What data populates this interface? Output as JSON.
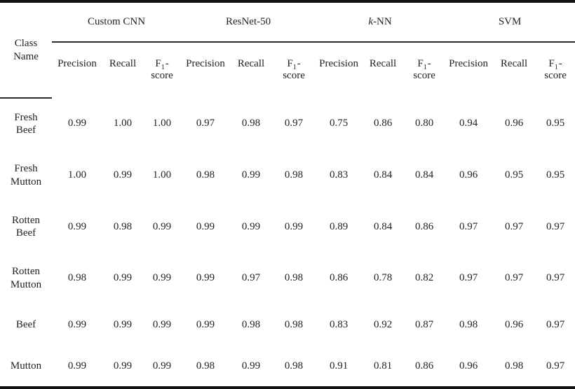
{
  "table": {
    "class_header": {
      "lines": [
        "Class",
        "Name"
      ]
    },
    "groups": [
      {
        "label": "Custom CNN"
      },
      {
        "label": "ResNet-50"
      },
      {
        "label_italic": "k",
        "label_rest": "-NN"
      },
      {
        "label": "SVM"
      }
    ],
    "metric_headers": {
      "precision": "Precision",
      "recall": "Recall",
      "f1": {
        "symbol": "F",
        "subscript": "1",
        "hyphen": "-",
        "line2": "score"
      }
    },
    "rows": [
      {
        "name_lines": [
          "Fresh",
          "Beef"
        ],
        "values": [
          "0.99",
          "1.00",
          "1.00",
          "0.97",
          "0.98",
          "0.97",
          "0.75",
          "0.86",
          "0.80",
          "0.94",
          "0.96",
          "0.95"
        ]
      },
      {
        "name_lines": [
          "Fresh",
          "Mutton"
        ],
        "values": [
          "1.00",
          "0.99",
          "1.00",
          "0.98",
          "0.99",
          "0.98",
          "0.83",
          "0.84",
          "0.84",
          "0.96",
          "0.95",
          "0.95"
        ]
      },
      {
        "name_lines": [
          "Rotten",
          "Beef"
        ],
        "values": [
          "0.99",
          "0.98",
          "0.99",
          "0.99",
          "0.99",
          "0.99",
          "0.89",
          "0.84",
          "0.86",
          "0.97",
          "0.97",
          "0.97"
        ]
      },
      {
        "name_lines": [
          "Rotten",
          "Mutton"
        ],
        "values": [
          "0.98",
          "0.99",
          "0.99",
          "0.99",
          "0.97",
          "0.98",
          "0.86",
          "0.78",
          "0.82",
          "0.97",
          "0.97",
          "0.97"
        ]
      },
      {
        "name_lines": [
          "Beef"
        ],
        "values": [
          "0.99",
          "0.99",
          "0.99",
          "0.99",
          "0.98",
          "0.98",
          "0.83",
          "0.92",
          "0.87",
          "0.98",
          "0.96",
          "0.97"
        ]
      },
      {
        "name_lines": [
          "Mutton"
        ],
        "values": [
          "0.99",
          "0.99",
          "0.99",
          "0.98",
          "0.99",
          "0.98",
          "0.91",
          "0.81",
          "0.86",
          "0.96",
          "0.98",
          "0.97"
        ]
      }
    ],
    "colors": {
      "text": "#231f20",
      "thick_rule": "#111111",
      "thin_rule": "#2b2b2b",
      "background": "#ffffff"
    }
  }
}
